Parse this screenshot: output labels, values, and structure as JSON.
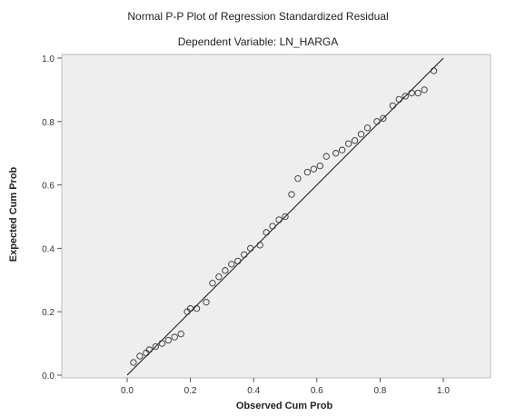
{
  "chart_data": {
    "type": "scatter",
    "title": "Normal P-P Plot of Regression Standardized Residual",
    "subtitle": "Dependent Variable: LN_HARGA",
    "xlabel": "Observed Cum Prob",
    "ylabel": "Expected Cum Prob",
    "xlim": [
      0,
      1
    ],
    "ylim": [
      0,
      1
    ],
    "x_ticks": [
      "0.0",
      "0.2",
      "0.4",
      "0.6",
      "0.8",
      "1.0"
    ],
    "y_ticks": [
      "0.0",
      "0.2",
      "0.4",
      "0.6",
      "0.8",
      "1.0"
    ],
    "grid": false,
    "plot_background": "#eeeeee",
    "point_color": "#333333",
    "line_color": "#111111",
    "marker": "open-circle",
    "reference_line": [
      [
        0,
        0
      ],
      [
        1,
        1
      ]
    ],
    "series": [
      {
        "x": [
          0.02,
          0.04,
          0.06,
          0.07,
          0.09,
          0.11,
          0.13,
          0.15,
          0.17,
          0.19,
          0.2,
          0.22,
          0.25,
          0.27,
          0.29,
          0.31,
          0.33,
          0.35,
          0.37,
          0.39,
          0.42,
          0.44,
          0.46,
          0.48,
          0.5,
          0.52,
          0.54,
          0.57,
          0.59,
          0.61,
          0.63,
          0.66,
          0.68,
          0.7,
          0.72,
          0.74,
          0.76,
          0.79,
          0.81,
          0.84,
          0.86,
          0.88,
          0.9,
          0.92,
          0.94,
          0.97
        ],
        "y": [
          0.04,
          0.06,
          0.07,
          0.08,
          0.09,
          0.1,
          0.11,
          0.12,
          0.13,
          0.2,
          0.21,
          0.21,
          0.23,
          0.29,
          0.31,
          0.33,
          0.35,
          0.36,
          0.38,
          0.4,
          0.41,
          0.45,
          0.47,
          0.49,
          0.5,
          0.57,
          0.62,
          0.64,
          0.65,
          0.66,
          0.69,
          0.7,
          0.71,
          0.73,
          0.74,
          0.76,
          0.78,
          0.8,
          0.81,
          0.85,
          0.87,
          0.88,
          0.89,
          0.89,
          0.9,
          0.96
        ]
      }
    ]
  }
}
